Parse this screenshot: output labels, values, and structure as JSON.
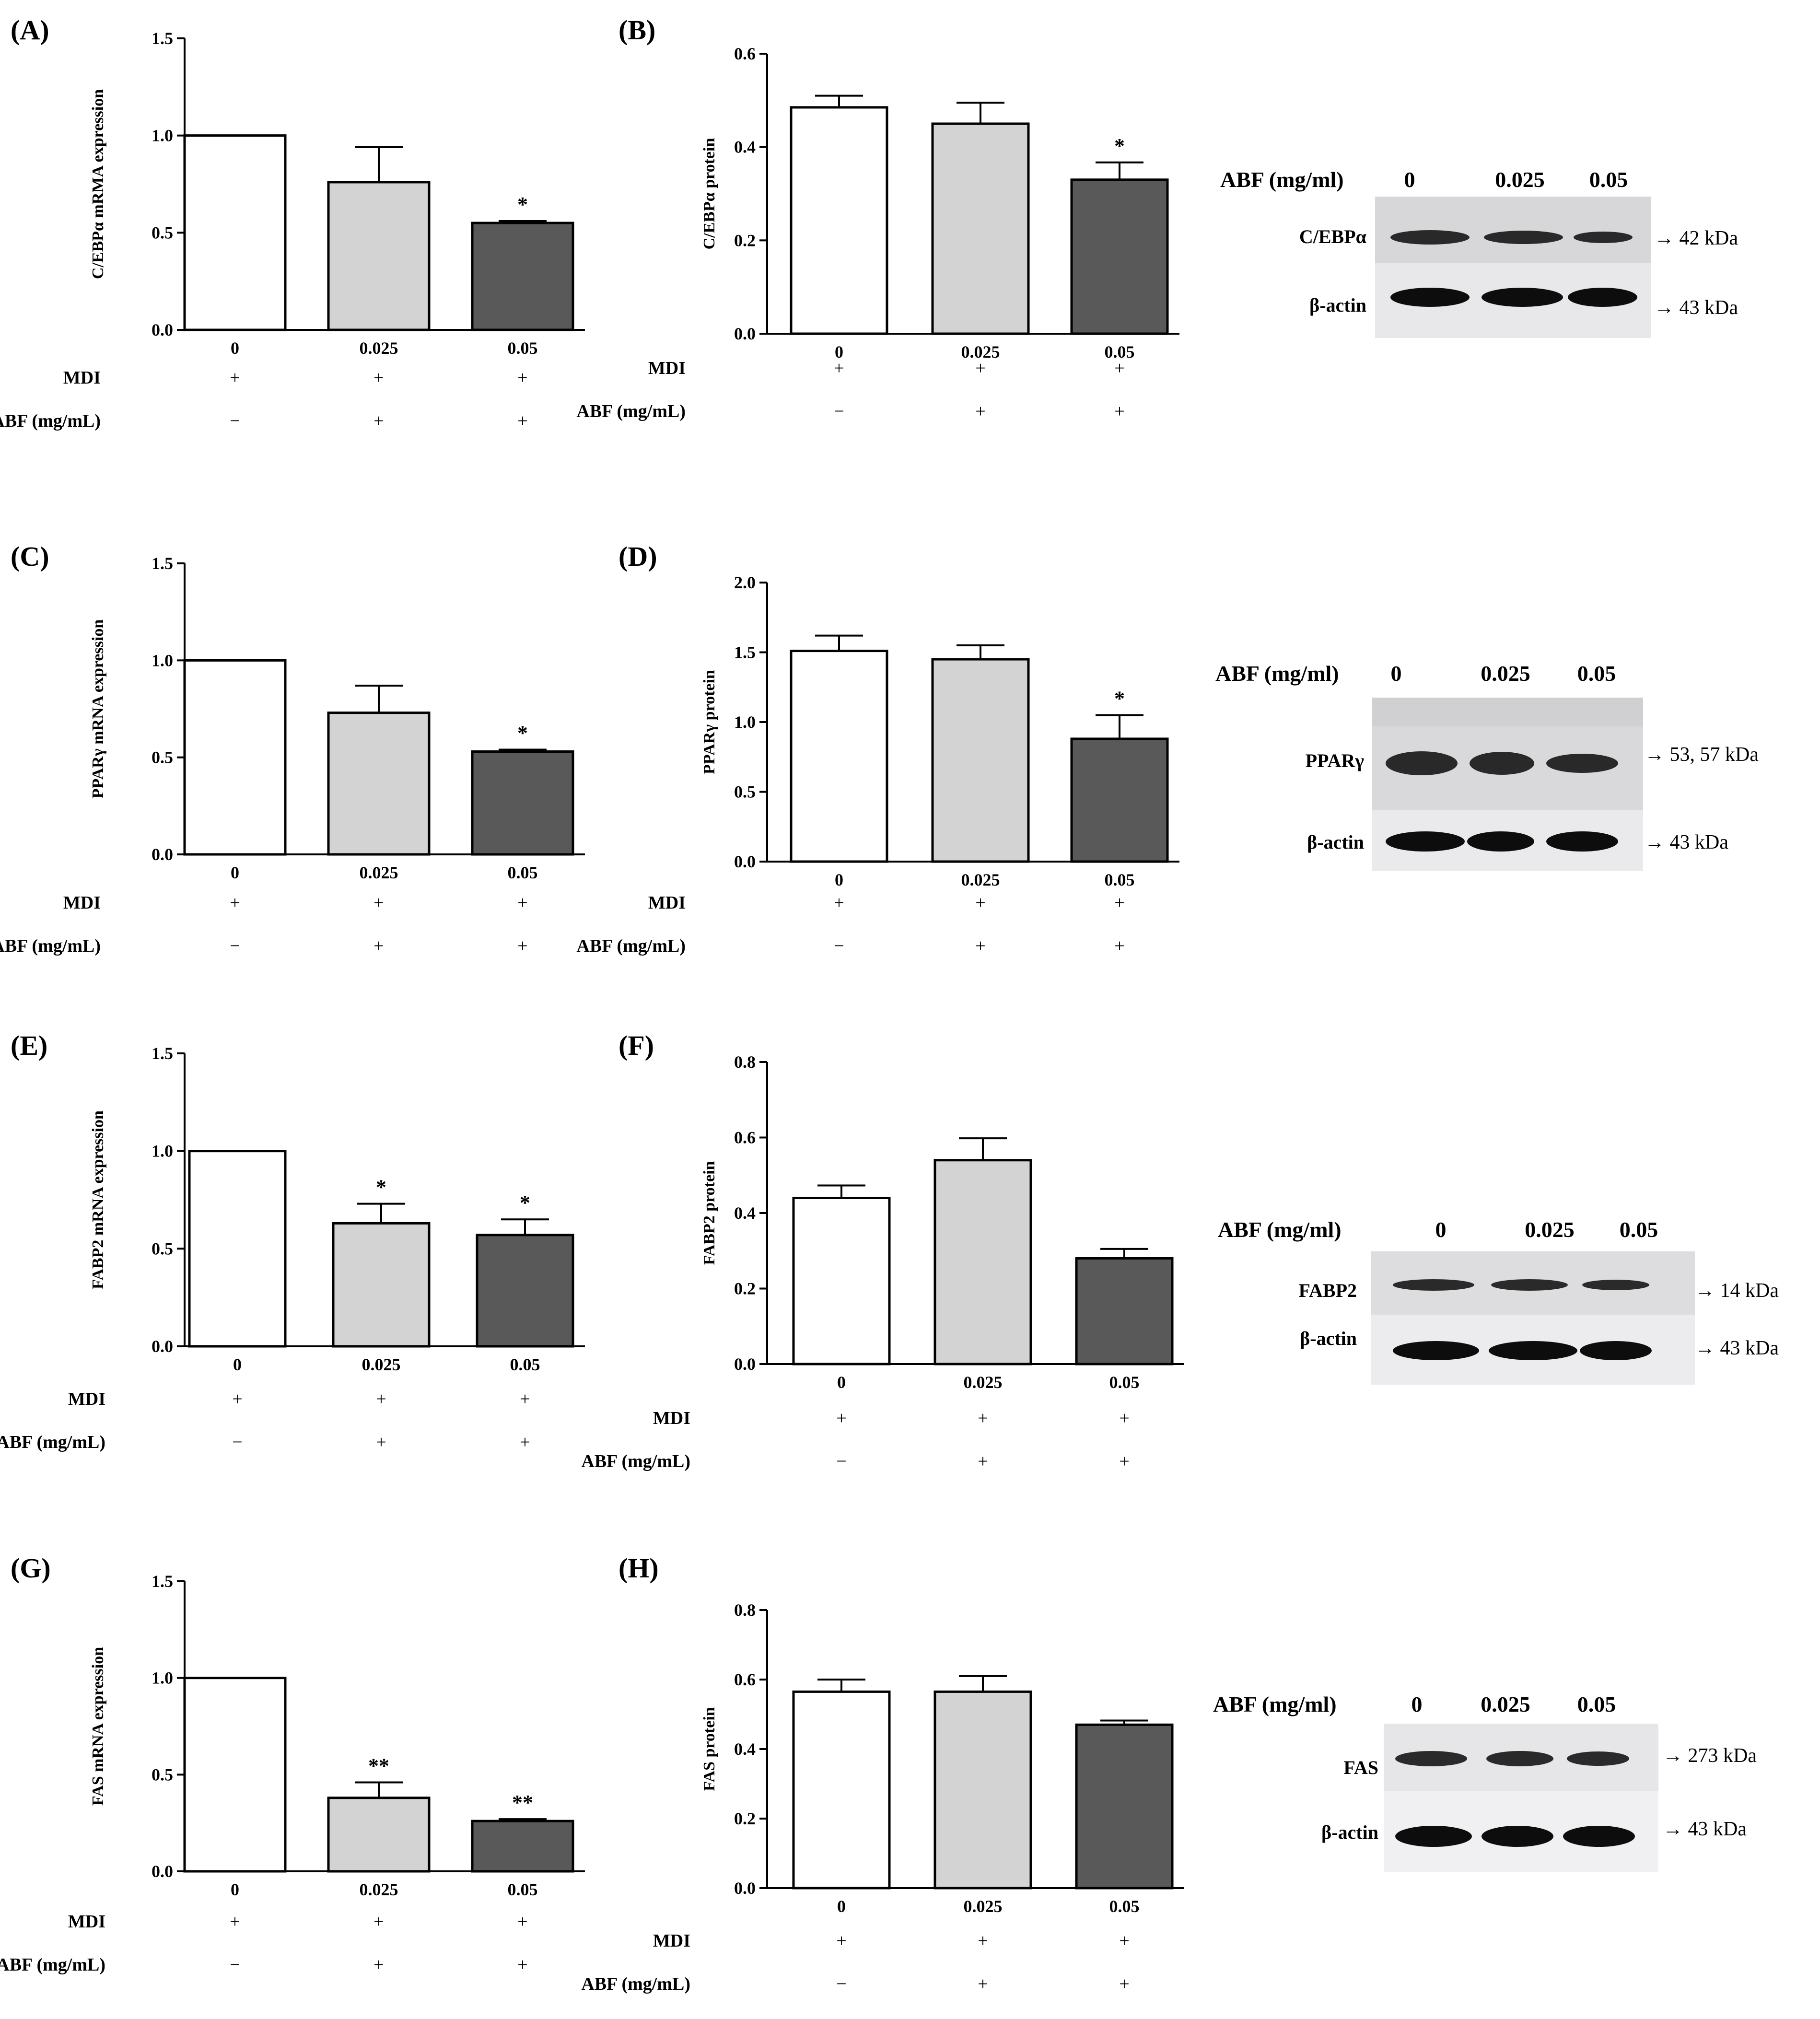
{
  "colors": {
    "control_fill": "#ffffff",
    "low_dose_fill": "#d3d3d3",
    "high_dose_fill": "#595959",
    "stroke": "#000000"
  },
  "chart_data": [
    {
      "id": "A",
      "panel_label": "(A)",
      "type": "bar",
      "ylabel": "C/EBPα mRMA expression",
      "ylim": [
        0,
        1.5
      ],
      "yticks": [
        "0.0",
        "0.5",
        "1.0",
        "1.5"
      ],
      "categories": [
        "0",
        "0.025",
        "0.05"
      ],
      "values": [
        1.0,
        0.76,
        0.55
      ],
      "errors": [
        0,
        0.18,
        0.01
      ],
      "significance": [
        "",
        "",
        "*"
      ],
      "rows": [
        {
          "label": "MDI",
          "signs": [
            "+",
            "+",
            "+"
          ]
        },
        {
          "label": "ABF (mg/mL)",
          "signs": [
            "−",
            "+",
            "+"
          ]
        }
      ]
    },
    {
      "id": "B",
      "panel_label": "(B)",
      "type": "bar",
      "ylabel": "C/EBPα protein",
      "ylim": [
        0,
        0.6
      ],
      "yticks": [
        "0.0",
        "0.2",
        "0.4",
        "0.6"
      ],
      "categories": [
        "0",
        "0.025",
        "0.05"
      ],
      "values": [
        0.485,
        0.45,
        0.33
      ],
      "errors": [
        0.025,
        0.045,
        0.037
      ],
      "significance": [
        "",
        "",
        "*"
      ],
      "rows": [
        {
          "label": "MDI",
          "signs": [
            "+",
            "+",
            "+"
          ]
        },
        {
          "label": "ABF (mg/mL)",
          "signs": [
            "−",
            "+",
            "+"
          ]
        }
      ]
    },
    {
      "id": "C",
      "panel_label": "(C)",
      "type": "bar",
      "ylabel": "PPARγ mRNA expression",
      "ylim": [
        0,
        1.5
      ],
      "yticks": [
        "0.0",
        "0.5",
        "1.0",
        "1.5"
      ],
      "categories": [
        "0",
        "0.025",
        "0.05"
      ],
      "values": [
        1.0,
        0.73,
        0.53
      ],
      "errors": [
        0,
        0.14,
        0.01
      ],
      "significance": [
        "",
        "",
        "*"
      ],
      "rows": [
        {
          "label": "MDI",
          "signs": [
            "+",
            "+",
            "+"
          ]
        },
        {
          "label": "ABF (mg/mL)",
          "signs": [
            "−",
            "+",
            "+"
          ]
        }
      ]
    },
    {
      "id": "D",
      "panel_label": "(D)",
      "type": "bar",
      "ylabel": "PPARγ protein",
      "ylim": [
        0,
        2.0
      ],
      "yticks": [
        "0.0",
        "0.5",
        "1.0",
        "1.5",
        "2.0"
      ],
      "categories": [
        "0",
        "0.025",
        "0.05"
      ],
      "values": [
        1.51,
        1.45,
        0.88
      ],
      "errors": [
        0.11,
        0.1,
        0.17
      ],
      "significance": [
        "",
        "",
        "*"
      ],
      "rows": [
        {
          "label": "MDI",
          "signs": [
            "+",
            "+",
            "+"
          ]
        },
        {
          "label": "ABF (mg/mL)",
          "signs": [
            "−",
            "+",
            "+"
          ]
        }
      ]
    },
    {
      "id": "E",
      "panel_label": "(E)",
      "type": "bar",
      "ylabel": "FABP2 mRNA expression",
      "ylim": [
        0,
        1.5
      ],
      "yticks": [
        "0.0",
        "0.5",
        "1.0",
        "1.5"
      ],
      "categories": [
        "0",
        "0.025",
        "0.05"
      ],
      "values": [
        1.0,
        0.63,
        0.57
      ],
      "errors": [
        0,
        0.1,
        0.08
      ],
      "significance": [
        "",
        "*",
        "*"
      ],
      "rows": [
        {
          "label": "MDI",
          "signs": [
            "+",
            "+",
            "+"
          ]
        },
        {
          "label": "ABF (mg/mL)",
          "signs": [
            "−",
            "+",
            "+"
          ]
        }
      ]
    },
    {
      "id": "F",
      "panel_label": "(F)",
      "type": "bar",
      "ylabel": "FABP2 protein",
      "ylim": [
        0,
        0.8
      ],
      "yticks": [
        "0.0",
        "0.2",
        "0.4",
        "0.6",
        "0.8"
      ],
      "categories": [
        "0",
        "0.025",
        "0.05"
      ],
      "values": [
        0.44,
        0.54,
        0.28
      ],
      "errors": [
        0.033,
        0.058,
        0.025
      ],
      "significance": [
        "",
        "",
        ""
      ],
      "rows": [
        {
          "label": "MDI",
          "signs": [
            "+",
            "+",
            "+"
          ]
        },
        {
          "label": "ABF (mg/mL)",
          "signs": [
            "−",
            "+",
            "+"
          ]
        }
      ]
    },
    {
      "id": "G",
      "panel_label": "(G)",
      "type": "bar",
      "ylabel": "FAS mRNA expression",
      "ylim": [
        0,
        1.5
      ],
      "yticks": [
        "0.0",
        "0.5",
        "1.0",
        "1.5"
      ],
      "categories": [
        "0",
        "0.025",
        "0.05"
      ],
      "values": [
        1.0,
        0.38,
        0.26
      ],
      "errors": [
        0,
        0.08,
        0.01
      ],
      "significance": [
        "",
        "**",
        "**"
      ],
      "rows": [
        {
          "label": "MDI",
          "signs": [
            "+",
            "+",
            "+"
          ]
        },
        {
          "label": "ABF (mg/mL)",
          "signs": [
            "−",
            "+",
            "+"
          ]
        }
      ]
    },
    {
      "id": "H",
      "panel_label": "(H)",
      "type": "bar",
      "ylabel": "FAS protein",
      "ylim": [
        0,
        0.8
      ],
      "yticks": [
        "0.0",
        "0.2",
        "0.4",
        "0.6",
        "0.8"
      ],
      "categories": [
        "0",
        "0.025",
        "0.05"
      ],
      "values": [
        0.565,
        0.565,
        0.47
      ],
      "errors": [
        0.035,
        0.045,
        0.012
      ],
      "significance": [
        "",
        "",
        ""
      ],
      "rows": [
        {
          "label": "MDI",
          "signs": [
            "+",
            "+",
            "+"
          ]
        },
        {
          "label": "ABF (mg/mL)",
          "signs": [
            "−",
            "+",
            "+"
          ]
        }
      ]
    }
  ],
  "western_blots": [
    {
      "header": "ABF (mg/ml)",
      "doses": [
        "0",
        "0.025",
        "0.05"
      ],
      "bands": [
        {
          "protein": "C/EBPα",
          "size": "→ 42 kDa"
        },
        {
          "protein": "β-actin",
          "size": "→  43 kDa"
        }
      ]
    },
    {
      "header": "ABF (mg/ml)",
      "doses": [
        "0",
        "0.025",
        "0.05"
      ],
      "bands": [
        {
          "protein": "PPARγ",
          "size": "→ 53, 57 kDa"
        },
        {
          "protein": "β-actin",
          "size": "→  43 kDa"
        }
      ]
    },
    {
      "header": "ABF (mg/ml)",
      "doses": [
        "0",
        "0.025",
        "0.05"
      ],
      "bands": [
        {
          "protein": "FABP2",
          "size": "→ 14 kDa"
        },
        {
          "protein": "β-actin",
          "size": "→  43 kDa"
        }
      ]
    },
    {
      "header": "ABF (mg/ml)",
      "doses": [
        "0",
        "0.025",
        "0.05"
      ],
      "bands": [
        {
          "protein": "FAS",
          "size": "→ 273 kDa"
        },
        {
          "protein": "β-actin",
          "size": "→  43 kDa"
        }
      ]
    }
  ]
}
